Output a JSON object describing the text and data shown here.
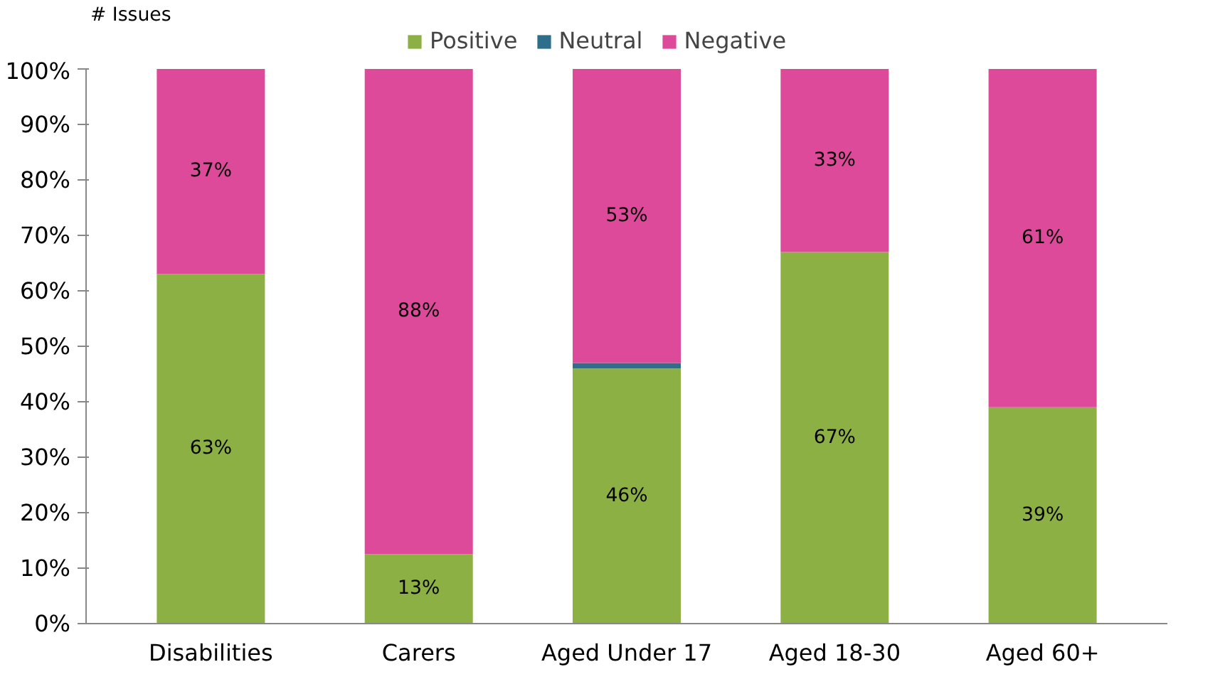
{
  "chart_data": {
    "type": "bar",
    "stacked": true,
    "ylabel": "# Issues",
    "categories": [
      "Disabilities",
      "Carers",
      "Aged Under 17",
      "Aged 18-30",
      "Aged 60+"
    ],
    "series": [
      {
        "name": "Positive",
        "color": "#8db045",
        "values": [
          63,
          12.5,
          46,
          67,
          39
        ],
        "value_labels": [
          "63%",
          "13%",
          "46%",
          "67%",
          "39%"
        ]
      },
      {
        "name": "Neutral",
        "color": "#2e6e8a",
        "values": [
          0,
          0,
          1,
          0,
          0
        ],
        "value_labels": [
          null,
          null,
          null,
          null,
          null
        ]
      },
      {
        "name": "Negative",
        "color": "#dd4a9a",
        "values": [
          37,
          87.5,
          53,
          33,
          61
        ],
        "value_labels": [
          "37%",
          "88%",
          "53%",
          "33%",
          "61%"
        ]
      }
    ],
    "ylim": [
      0,
      100
    ],
    "yticks": [
      {
        "value": 0,
        "label": "0%"
      },
      {
        "value": 10,
        "label": "10%"
      },
      {
        "value": 20,
        "label": "20%"
      },
      {
        "value": 30,
        "label": "30%"
      },
      {
        "value": 40,
        "label": "40%"
      },
      {
        "value": 50,
        "label": "50%"
      },
      {
        "value": 60,
        "label": "60%"
      },
      {
        "value": 70,
        "label": "70%"
      },
      {
        "value": 80,
        "label": "80%"
      },
      {
        "value": 90,
        "label": "90%"
      },
      {
        "value": 100,
        "label": "100%"
      }
    ],
    "grid": false,
    "legend": "top"
  }
}
